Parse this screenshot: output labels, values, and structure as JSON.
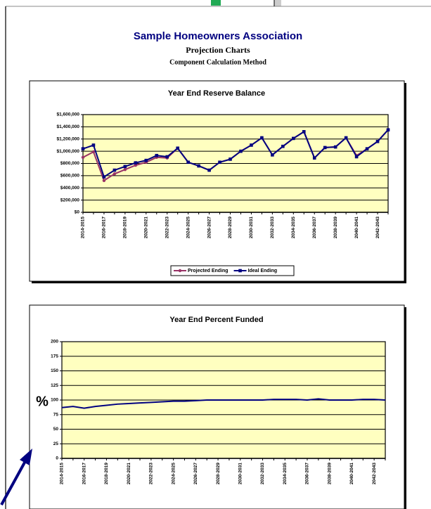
{
  "header": {
    "title": "Sample Homeowners Association",
    "subtitle": "Projection Charts",
    "method": "Component Calculation Method"
  },
  "chart_data": [
    {
      "type": "line",
      "title": "Year End Reserve Balance",
      "categories": [
        "2014-2015",
        null,
        "2016-2017",
        null,
        "2018-2019",
        null,
        "2020-2021",
        null,
        "2022-2023",
        null,
        "2024-2025",
        null,
        "2026-2027",
        null,
        "2028-2029",
        null,
        "2030-2031",
        null,
        "2032-2033",
        null,
        "2034-2035",
        null,
        "2036-2037",
        null,
        "2038-2039",
        null,
        "2040-2041",
        null,
        "2042-2043",
        null
      ],
      "series": [
        {
          "name": "Projected Ending",
          "color": "#993366",
          "marker": "circle",
          "values": [
            900000,
            990000,
            520000,
            630000,
            700000,
            770000,
            820000,
            900000,
            890000,
            1050000,
            820000,
            760000,
            690000,
            820000,
            870000,
            1000000,
            1100000,
            1220000,
            940000,
            1080000,
            1210000,
            1320000,
            890000,
            1060000,
            1070000,
            1220000,
            930000,
            1040000,
            1160000,
            1350000
          ]
        },
        {
          "name": "Ideal Ending",
          "color": "#000080",
          "marker": "square",
          "values": [
            1040000,
            1100000,
            580000,
            690000,
            750000,
            810000,
            850000,
            930000,
            910000,
            1050000,
            820000,
            760000,
            690000,
            820000,
            870000,
            1000000,
            1100000,
            1220000,
            940000,
            1080000,
            1210000,
            1320000,
            890000,
            1060000,
            1070000,
            1220000,
            910000,
            1040000,
            1160000,
            1350000
          ]
        }
      ],
      "ylim": [
        0,
        1600000
      ],
      "yticks": [
        {
          "value": 0,
          "label": "$0"
        },
        {
          "value": 200000,
          "label": "$200,000"
        },
        {
          "value": 400000,
          "label": "$400,000"
        },
        {
          "value": 600000,
          "label": "$600,000"
        },
        {
          "value": 800000,
          "label": "$800,000"
        },
        {
          "value": 1000000,
          "label": "$1,000,000"
        },
        {
          "value": 1200000,
          "label": "$1,200,000"
        },
        {
          "value": 1400000,
          "label": "$1,400,000"
        },
        {
          "value": 1600000,
          "label": "$1,600,000"
        }
      ],
      "grid": true,
      "legend": "bottom"
    },
    {
      "type": "line",
      "title": "Year End Percent Funded",
      "y_label": "%",
      "categories": [
        "2014-2015",
        null,
        "2016-2017",
        null,
        "2018-2019",
        null,
        "2020-2021",
        null,
        "2022-2023",
        null,
        "2024-2025",
        null,
        "2026-2027",
        null,
        "2028-2029",
        null,
        "2030-2031",
        null,
        "2032-2033",
        null,
        "2034-2035",
        null,
        "2036-2037",
        null,
        "2038-2039",
        null,
        "2040-2041",
        null,
        "2042-2043",
        null
      ],
      "series": [
        {
          "color": "#000080",
          "values": [
            87,
            89,
            86,
            89,
            91,
            93,
            94,
            95,
            96,
            97,
            98,
            98,
            99,
            100,
            100,
            100,
            100,
            100,
            100,
            101,
            101,
            101,
            100,
            102,
            100,
            100,
            100,
            101,
            101,
            100
          ]
        }
      ],
      "ylim": [
        0,
        200
      ],
      "yticks": [
        0,
        25,
        50,
        75,
        100,
        125,
        150,
        175,
        200
      ],
      "grid": true
    }
  ]
}
